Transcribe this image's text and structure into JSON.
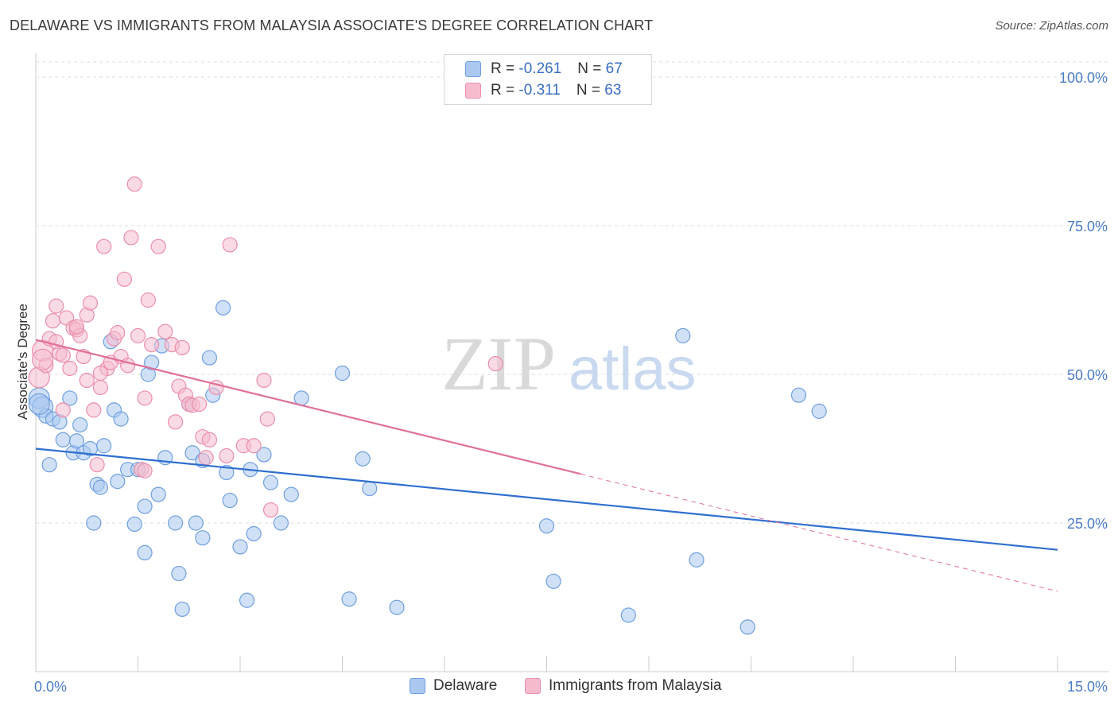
{
  "header": {
    "title": "DELAWARE VS IMMIGRANTS FROM MALAYSIA ASSOCIATE'S DEGREE CORRELATION CHART",
    "source": "Source: ZipAtlas.com"
  },
  "legend": {
    "series1": {
      "r_label": "R =",
      "r_value": "-0.261",
      "n_label": "N =",
      "n_value": "67"
    },
    "series2": {
      "r_label": "R =",
      "r_value": "-0.311",
      "n_label": "N =",
      "n_value": "63"
    }
  },
  "watermark": {
    "zip": "ZIP",
    "atlas": "atlas"
  },
  "colors": {
    "delaware_fill": "#aac8f0",
    "delaware_stroke": "#6f9fdf",
    "delaware_line": "#2f6fd0",
    "malaysia_fill": "#f6bccd",
    "malaysia_stroke": "#ea8fab",
    "malaysia_line": "#e0709a",
    "tick_text": "#4a7cc7",
    "grid": "#dddddd"
  },
  "chart_data": {
    "type": "scatter",
    "title": "DELAWARE VS IMMIGRANTS FROM MALAYSIA ASSOCIATE'S DEGREE CORRELATION CHART",
    "xlabel": "",
    "ylabel": "Associate's Degree",
    "xlim": [
      0,
      15
    ],
    "ylim": [
      0,
      100
    ],
    "x_tick_labels": [
      "0.0%",
      "15.0%"
    ],
    "y_tick_labels": [
      "25.0%",
      "50.0%",
      "75.0%",
      "100.0%"
    ],
    "y_ticks": [
      25,
      50,
      75,
      100
    ],
    "grid": true,
    "legend_position": "bottom",
    "series": [
      {
        "name": "Delaware",
        "r": -0.261,
        "n": 67,
        "trend": {
          "x": [
            0,
            15
          ],
          "y": [
            37.5,
            20.5
          ],
          "dashed_from": null
        },
        "points": [
          [
            0.05,
            46.0
          ],
          [
            0.1,
            44.5
          ],
          [
            0.15,
            43.0
          ],
          [
            0.2,
            34.8
          ],
          [
            0.25,
            42.5
          ],
          [
            0.35,
            42.0
          ],
          [
            0.4,
            39.0
          ],
          [
            0.5,
            46.0
          ],
          [
            0.55,
            36.8
          ],
          [
            0.6,
            38.8
          ],
          [
            0.65,
            41.5
          ],
          [
            0.7,
            36.8
          ],
          [
            0.8,
            37.5
          ],
          [
            0.85,
            25.0
          ],
          [
            0.9,
            31.5
          ],
          [
            0.95,
            31.0
          ],
          [
            1.0,
            38.0
          ],
          [
            1.1,
            55.5
          ],
          [
            1.15,
            44.0
          ],
          [
            1.2,
            32.0
          ],
          [
            1.25,
            42.5
          ],
          [
            1.35,
            34.0
          ],
          [
            1.45,
            24.8
          ],
          [
            1.5,
            34.0
          ],
          [
            1.6,
            20.0
          ],
          [
            1.6,
            27.8
          ],
          [
            1.65,
            50.0
          ],
          [
            1.7,
            52.0
          ],
          [
            1.8,
            29.8
          ],
          [
            1.85,
            54.8
          ],
          [
            1.9,
            36.0
          ],
          [
            2.05,
            25.0
          ],
          [
            2.1,
            16.5
          ],
          [
            2.15,
            10.5
          ],
          [
            2.25,
            45.0
          ],
          [
            2.3,
            36.8
          ],
          [
            2.35,
            25.0
          ],
          [
            2.45,
            22.5
          ],
          [
            2.45,
            35.5
          ],
          [
            2.55,
            52.8
          ],
          [
            2.6,
            46.5
          ],
          [
            2.75,
            61.2
          ],
          [
            2.8,
            33.5
          ],
          [
            2.85,
            28.8
          ],
          [
            3.0,
            21.0
          ],
          [
            3.1,
            12.0
          ],
          [
            3.15,
            34.0
          ],
          [
            3.2,
            23.2
          ],
          [
            3.35,
            36.5
          ],
          [
            3.45,
            31.8
          ],
          [
            3.6,
            25.0
          ],
          [
            3.75,
            29.8
          ],
          [
            3.9,
            46.0
          ],
          [
            4.5,
            50.2
          ],
          [
            4.6,
            12.2
          ],
          [
            4.8,
            35.8
          ],
          [
            4.9,
            30.8
          ],
          [
            5.3,
            10.8
          ],
          [
            7.5,
            24.5
          ],
          [
            7.6,
            15.2
          ],
          [
            8.7,
            9.5
          ],
          [
            9.5,
            56.5
          ],
          [
            9.7,
            18.8
          ],
          [
            10.45,
            7.5
          ],
          [
            11.2,
            46.5
          ],
          [
            11.5,
            43.8
          ],
          [
            0.05,
            45.0
          ]
        ]
      },
      {
        "name": "Immigrants from Malaysia",
        "r": -0.311,
        "n": 63,
        "trend": {
          "x": [
            0,
            15
          ],
          "y": [
            55.8,
            13.5
          ],
          "dashed_from": 8.0
        },
        "points": [
          [
            0.05,
            49.5
          ],
          [
            0.1,
            54.0
          ],
          [
            0.15,
            51.5
          ],
          [
            0.2,
            56.0
          ],
          [
            0.25,
            59.0
          ],
          [
            0.3,
            61.5
          ],
          [
            0.3,
            55.5
          ],
          [
            0.35,
            53.5
          ],
          [
            0.4,
            44.0
          ],
          [
            0.45,
            59.5
          ],
          [
            0.5,
            51.0
          ],
          [
            0.55,
            57.8
          ],
          [
            0.6,
            57.5
          ],
          [
            0.65,
            56.5
          ],
          [
            0.7,
            53.0
          ],
          [
            0.75,
            49.0
          ],
          [
            0.75,
            60.0
          ],
          [
            0.8,
            62.0
          ],
          [
            0.85,
            44.0
          ],
          [
            0.9,
            34.8
          ],
          [
            0.95,
            47.8
          ],
          [
            1.0,
            71.5
          ],
          [
            1.05,
            51.0
          ],
          [
            1.1,
            52.0
          ],
          [
            1.15,
            56.0
          ],
          [
            1.2,
            57.0
          ],
          [
            1.25,
            53.0
          ],
          [
            1.3,
            66.0
          ],
          [
            1.35,
            51.5
          ],
          [
            1.4,
            73.0
          ],
          [
            1.45,
            82.0
          ],
          [
            1.5,
            56.5
          ],
          [
            1.55,
            34.0
          ],
          [
            1.6,
            33.8
          ],
          [
            1.65,
            62.5
          ],
          [
            1.7,
            55.0
          ],
          [
            1.8,
            71.5
          ],
          [
            1.9,
            57.2
          ],
          [
            2.0,
            55.0
          ],
          [
            2.05,
            42.0
          ],
          [
            2.1,
            48.0
          ],
          [
            2.15,
            54.5
          ],
          [
            2.2,
            46.5
          ],
          [
            2.25,
            45.0
          ],
          [
            2.3,
            44.8
          ],
          [
            2.4,
            45.0
          ],
          [
            2.45,
            39.5
          ],
          [
            2.5,
            36.0
          ],
          [
            2.55,
            39.0
          ],
          [
            2.65,
            47.8
          ],
          [
            2.8,
            36.3
          ],
          [
            2.85,
            71.8
          ],
          [
            3.05,
            38.0
          ],
          [
            3.2,
            38.0
          ],
          [
            3.35,
            49.0
          ],
          [
            3.4,
            42.5
          ],
          [
            3.45,
            27.2
          ],
          [
            6.75,
            51.8
          ],
          [
            0.6,
            58.0
          ],
          [
            0.4,
            53.2
          ],
          [
            0.95,
            50.2
          ],
          [
            1.6,
            46.0
          ],
          [
            0.1,
            52.5
          ]
        ]
      }
    ]
  }
}
